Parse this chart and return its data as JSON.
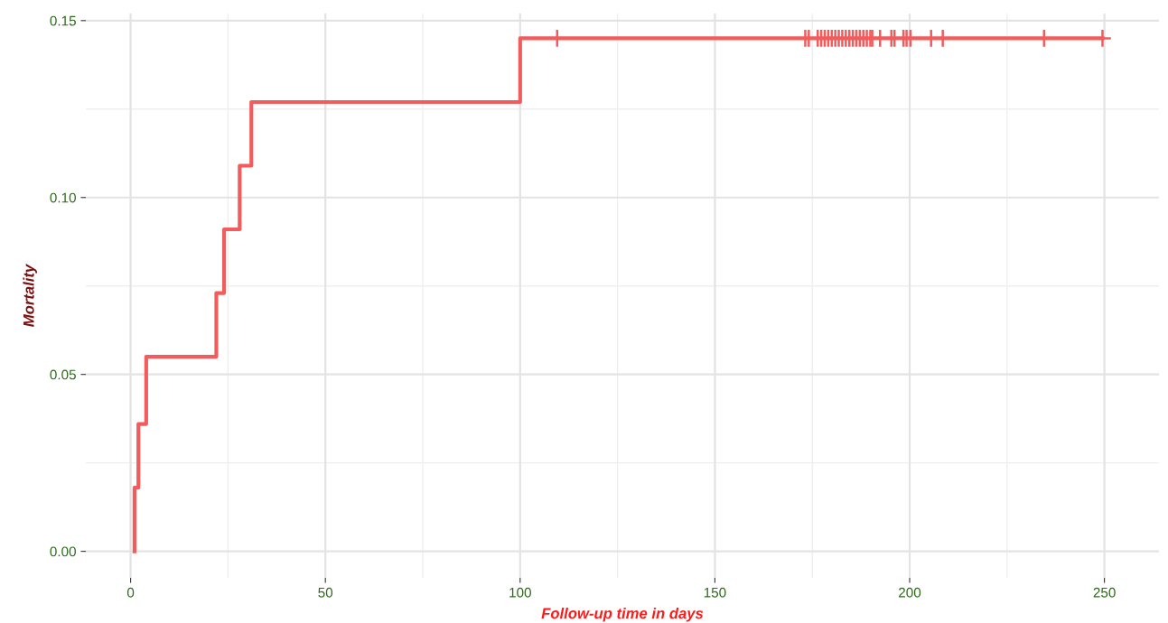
{
  "chart_data": {
    "type": "step",
    "xlabel": "Follow-up time in days",
    "ylabel": "Mortality",
    "series": [
      {
        "color": "#f25c5c",
        "x": [
          1,
          1,
          2,
          4,
          22,
          24,
          28,
          31,
          100,
          249.5
        ],
        "values": [
          0,
          0.018,
          0.036,
          0.055,
          0.073,
          0.091,
          0.109,
          0.127,
          0.145,
          0.145
        ]
      },
      {
        "type": "scatter",
        "marker": "cross",
        "color": "#f25c5c",
        "x": [
          109.5,
          173.2,
          174.1,
          176.4,
          177.3,
          178.2,
          179.1,
          180,
          180.9,
          181.8,
          182.7,
          183.6,
          184.5,
          185.4,
          186.3,
          187.2,
          188.1,
          189,
          189.9,
          190.4,
          192.4,
          195.3,
          196.1,
          198.4,
          199.2,
          200.2,
          205.5,
          208.5,
          234.5,
          249.5
        ],
        "values": [
          0.145,
          0.145,
          0.145,
          0.145,
          0.145,
          0.145,
          0.145,
          0.145,
          0.145,
          0.145,
          0.145,
          0.145,
          0.145,
          0.145,
          0.145,
          0.145,
          0.145,
          0.145,
          0.145,
          0.145,
          0.145,
          0.145,
          0.145,
          0.145,
          0.145,
          0.145,
          0.145,
          0.145,
          0.145,
          0.145
        ]
      }
    ],
    "xlim": [
      -11.5,
      264
    ],
    "ylim": [
      -0.0075,
      0.152
    ],
    "xticks": [
      0,
      50,
      100,
      150,
      200,
      250
    ],
    "yticks": [
      {
        "value": 0,
        "label": "0.00"
      },
      {
        "value": 0.05,
        "label": "0.05"
      },
      {
        "value": 0.1,
        "label": "0.10"
      },
      {
        "value": 0.15,
        "label": "0.15"
      }
    ],
    "grid": true
  }
}
